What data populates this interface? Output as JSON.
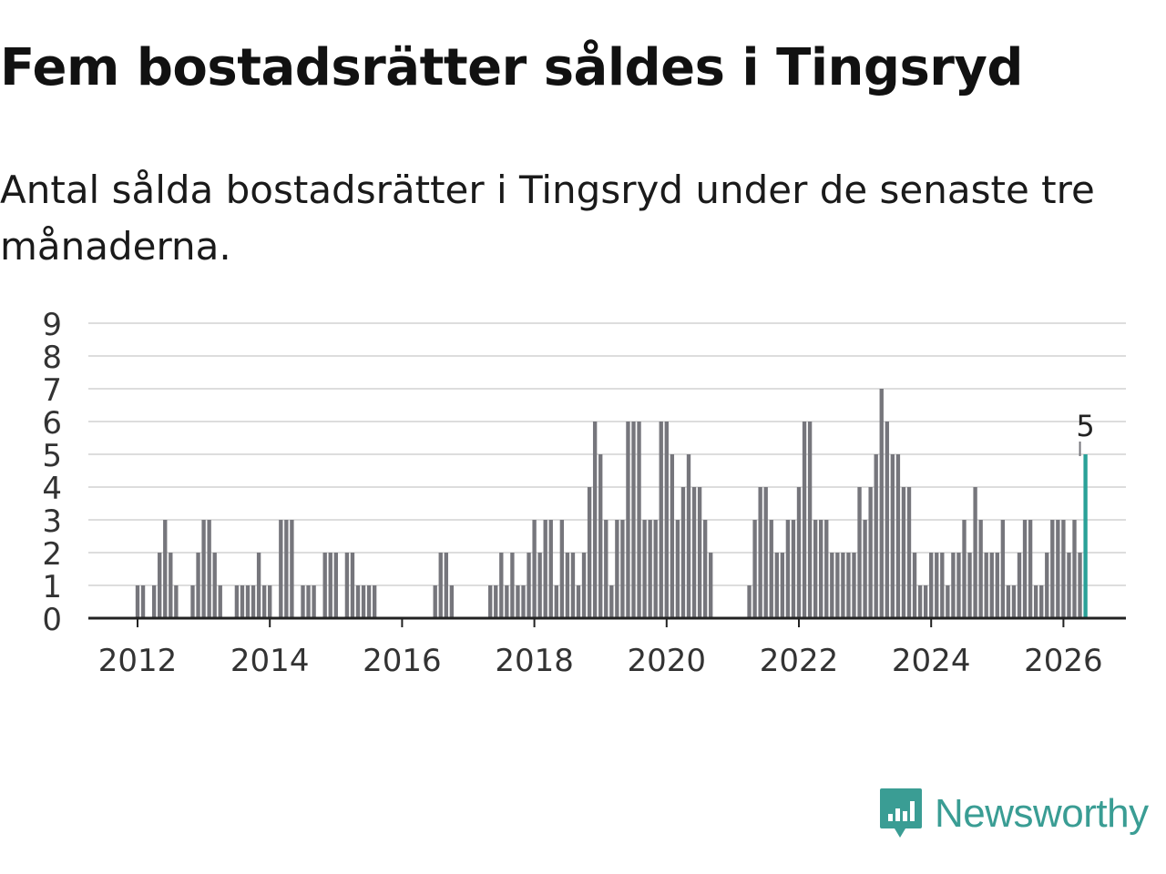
{
  "title": "Fem bostadsrätter såldes i Tingsryd",
  "subtitle": "Antal sålda bostadsrätter i Tingsryd under de senaste tre månaderna.",
  "brand": {
    "name": "Newsworthy",
    "color": "#3a9d94",
    "icon": "newsworthy-logo-icon"
  },
  "colors": {
    "bar": "#76767c",
    "highlight": "#2aa198",
    "grid": "#dddddd",
    "axis": "#222222"
  },
  "chart_data": {
    "type": "bar",
    "title": "Fem bostadsrätter såldes i Tingsryd",
    "xlabel": "",
    "ylabel": "",
    "ylim": [
      0,
      9
    ],
    "yticks": [
      "0",
      "1",
      "2",
      "3",
      "4",
      "5",
      "6",
      "7",
      "8",
      "9"
    ],
    "xticks": [
      {
        "year": 2012,
        "label": "2012"
      },
      {
        "year": 2014,
        "label": "2014"
      },
      {
        "year": 2016,
        "label": "2016"
      },
      {
        "year": 2018,
        "label": "2018"
      },
      {
        "year": 2020,
        "label": "2020"
      },
      {
        "year": 2022,
        "label": "2022"
      },
      {
        "year": 2024,
        "label": "2024"
      },
      {
        "year": 2026,
        "label": "2026"
      }
    ],
    "start": "2011-03",
    "frequency": "monthly",
    "values": [
      0,
      0,
      0,
      0,
      0,
      0,
      0,
      0,
      0,
      0,
      1,
      1,
      0,
      1,
      2,
      3,
      2,
      1,
      0,
      0,
      1,
      2,
      3,
      3,
      2,
      1,
      0,
      0,
      1,
      1,
      1,
      1,
      2,
      1,
      1,
      0,
      3,
      3,
      3,
      0,
      1,
      1,
      1,
      0,
      2,
      2,
      2,
      0,
      2,
      2,
      1,
      1,
      1,
      1,
      0,
      0,
      0,
      0,
      0,
      0,
      0,
      0,
      0,
      0,
      1,
      2,
      2,
      1,
      0,
      0,
      0,
      0,
      0,
      0,
      1,
      1,
      2,
      1,
      2,
      1,
      1,
      2,
      3,
      2,
      3,
      3,
      1,
      3,
      2,
      2,
      1,
      2,
      4,
      6,
      5,
      3,
      1,
      3,
      3,
      6,
      6,
      6,
      3,
      3,
      3,
      6,
      6,
      5,
      3,
      4,
      5,
      4,
      4,
      3,
      2,
      0,
      0,
      0,
      0,
      0,
      0,
      1,
      3,
      4,
      4,
      3,
      2,
      2,
      3,
      3,
      4,
      6,
      6,
      3,
      3,
      3,
      2,
      2,
      2,
      2,
      2,
      4,
      3,
      4,
      5,
      7,
      6,
      5,
      5,
      4,
      4,
      2,
      1,
      1,
      2,
      2,
      2,
      1,
      2,
      2,
      3,
      2,
      4,
      3,
      2,
      2,
      2,
      3,
      1,
      1,
      2,
      3,
      3,
      1,
      1,
      2,
      3,
      3,
      3,
      2,
      3,
      2,
      5
    ],
    "highlight_last": true,
    "annotations": [
      {
        "label": "5",
        "value": 5,
        "position": "last bar"
      }
    ],
    "legend": "none"
  }
}
